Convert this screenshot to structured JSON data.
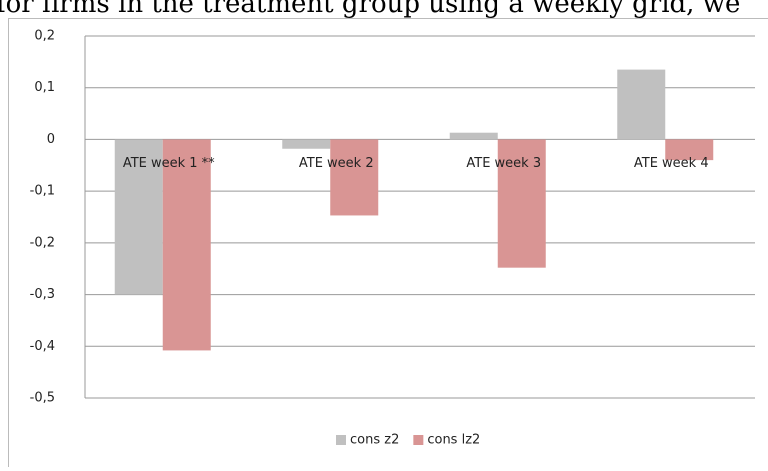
{
  "page_text": {
    "caption": "for firms in the treatment group using a weekly grid, we"
  },
  "chart_data": {
    "type": "bar",
    "categories": [
      "ATE week 1 **",
      "ATE week 2",
      "ATE week 3",
      "ATE week 4"
    ],
    "series": [
      {
        "name": "cons z2",
        "color": "#c0c0c0",
        "values": [
          -0.3,
          -0.018,
          0.013,
          0.135
        ]
      },
      {
        "name": "cons lz2",
        "color": "#d99594",
        "values": [
          -0.408,
          -0.147,
          -0.248,
          -0.04
        ]
      }
    ],
    "ylim": [
      -0.5,
      0.2
    ],
    "yticks": [
      {
        "value": -0.5,
        "label": "-0,5"
      },
      {
        "value": -0.4,
        "label": "-0,4"
      },
      {
        "value": -0.3,
        "label": "-0,3"
      },
      {
        "value": -0.2,
        "label": "-0,2"
      },
      {
        "value": -0.1,
        "label": "-0,1"
      },
      0,
      {
        "value": 0.1,
        "label": "0,1"
      },
      {
        "value": 0.2,
        "label": "0,2"
      }
    ],
    "grid": true,
    "legend": "bottom"
  }
}
